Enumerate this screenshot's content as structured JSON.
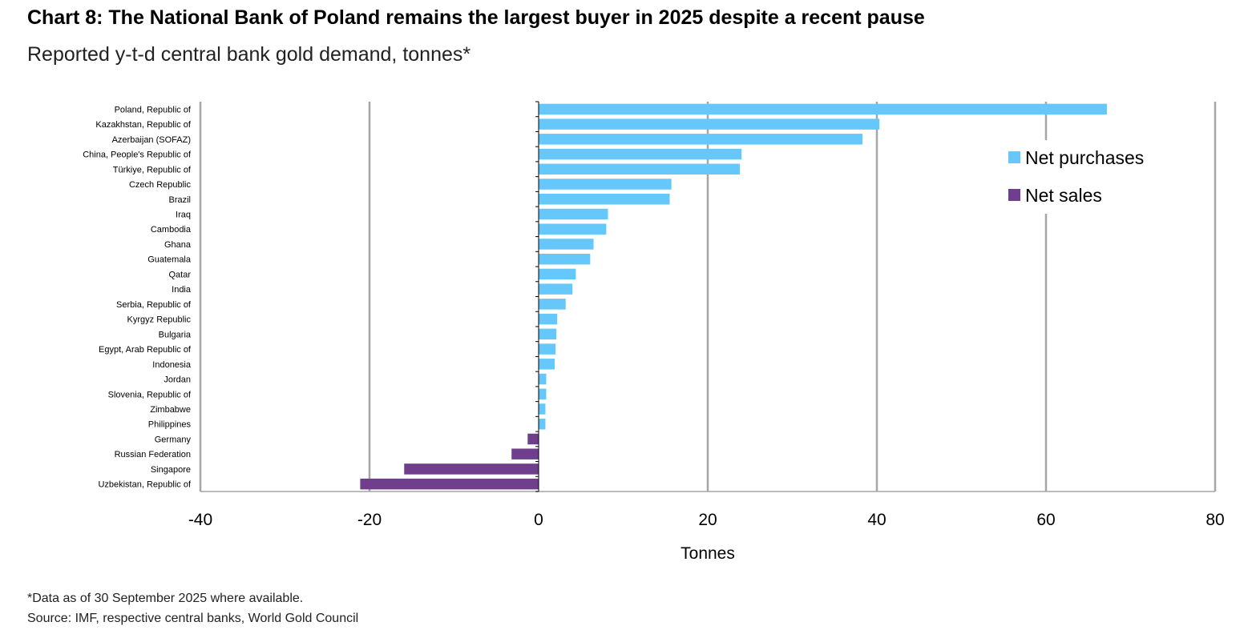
{
  "header": {
    "title": "Chart 8: The National Bank of Poland remains the largest buyer in 2025 despite a recent pause",
    "subtitle": "Reported y-t-d central bank gold demand, tonnes*"
  },
  "footer": {
    "note": "*Data as of 30 September 2025 where available.",
    "source": "Source: IMF, respective central banks, World Gold Council"
  },
  "colors": {
    "net_purchases": "#66c8fa",
    "net_sales": "#6f3f8e",
    "grid": "#a6a6a6"
  },
  "chart_data": {
    "type": "bar",
    "orientation": "horizontal",
    "xlabel": "Tonnes",
    "xlim": [
      -40,
      80
    ],
    "xticks": [
      -40,
      -20,
      0,
      20,
      40,
      60,
      80
    ],
    "grid": true,
    "legend_position": "top-right",
    "legend": [
      "Net purchases",
      "Net sales"
    ],
    "categories": [
      "Poland, Republic of",
      "Kazakhstan, Republic of",
      "Azerbaijan (SOFAZ)",
      "China, People's Republic of",
      "Türkiye, Republic of",
      "Czech Republic",
      "Brazil",
      "Iraq",
      "Cambodia",
      "Ghana",
      "Guatemala",
      "Qatar",
      "India",
      "Serbia, Republic of",
      "Kyrgyz Republic",
      "Bulgaria",
      "Egypt, Arab Republic of",
      "Indonesia",
      "Jordan",
      "Slovenia, Republic of",
      "Zimbabwe",
      "Philippines",
      "Germany",
      "Russian Federation",
      "Singapore",
      "Uzbekistan, Republic of"
    ],
    "values": [
      67.2,
      40.3,
      38.3,
      24.0,
      23.8,
      15.7,
      15.5,
      8.2,
      8.0,
      6.5,
      6.1,
      4.4,
      4.0,
      3.2,
      2.2,
      2.1,
      2.0,
      1.9,
      0.9,
      0.9,
      0.8,
      0.8,
      -1.3,
      -3.2,
      -15.9,
      -21.1
    ]
  }
}
